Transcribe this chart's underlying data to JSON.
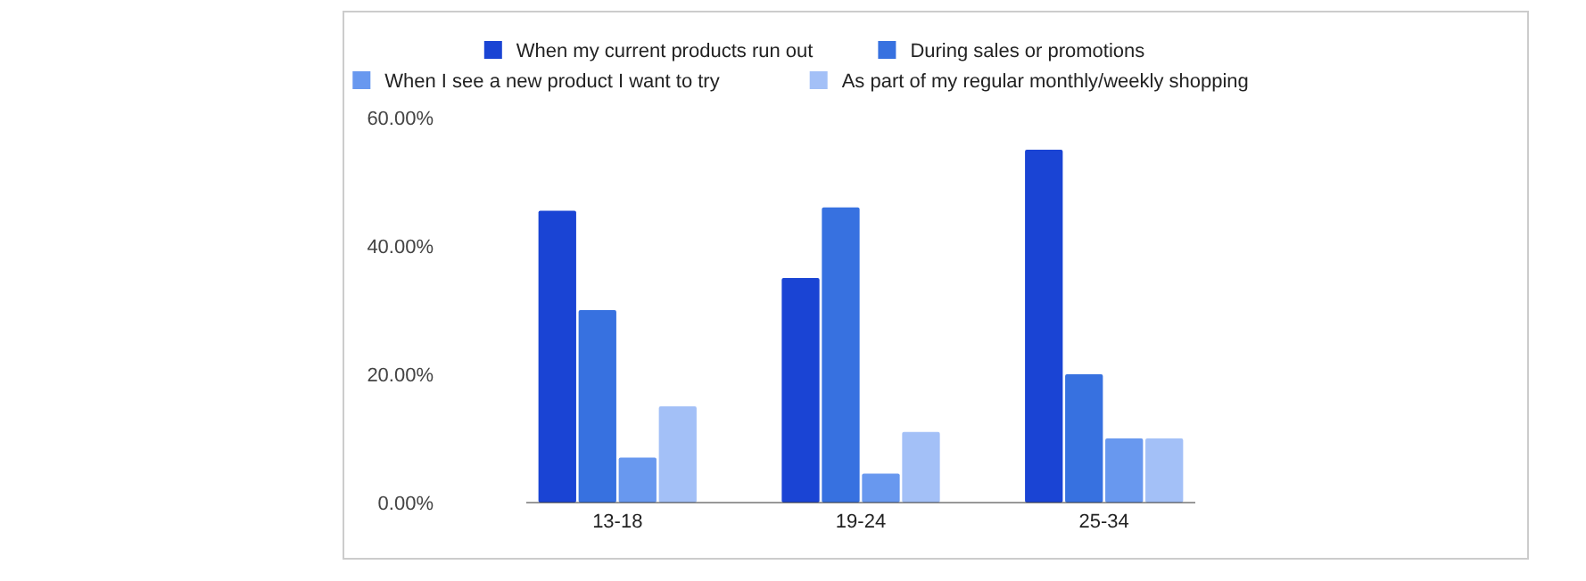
{
  "chart_data": {
    "type": "bar",
    "categories": [
      "13-18",
      "19-24",
      "25-34"
    ],
    "series": [
      {
        "name": "When my current products run out",
        "color": "#1a44d4",
        "values": [
          45.5,
          35,
          55
        ]
      },
      {
        "name": "During sales or promotions",
        "color": "#3771e0",
        "values": [
          30,
          46,
          20
        ]
      },
      {
        "name": "When I see a new product I want to try",
        "color": "#6898ef",
        "values": [
          7,
          4.5,
          10
        ]
      },
      {
        "name": "As part of my regular monthly/weekly shopping",
        "color": "#a3c0f7",
        "values": [
          15,
          11,
          10
        ]
      }
    ],
    "ylim": [
      0,
      60
    ],
    "yticks": [
      {
        "value": 0,
        "label": "0.00%"
      },
      {
        "value": 20,
        "label": "20.00%"
      },
      {
        "value": 40,
        "label": "40.00%"
      },
      {
        "value": 60,
        "label": "60.00%"
      }
    ],
    "grid": false,
    "legend": "top"
  }
}
